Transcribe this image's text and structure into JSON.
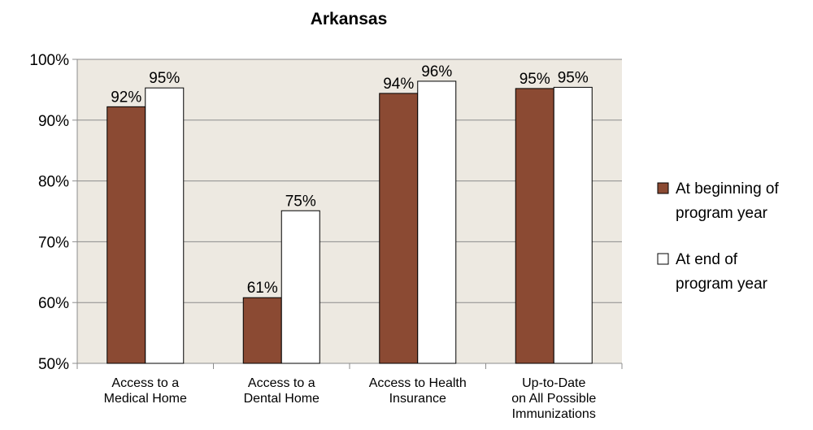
{
  "chart_data": {
    "type": "bar",
    "title": "Arkansas",
    "xlabel": "",
    "ylabel": "",
    "ylim": [
      50,
      100
    ],
    "y_ticks": [
      "50%",
      "60%",
      "70%",
      "80%",
      "90%",
      "100%"
    ],
    "y_tick_values": [
      50,
      60,
      70,
      80,
      90,
      100
    ],
    "categories": [
      [
        "Access to a",
        "Medical Home"
      ],
      [
        "Access to a",
        "Dental Home"
      ],
      [
        "Access to Health",
        "Insurance"
      ],
      [
        "Up-to-Date",
        "on All Possible",
        "Immunizations"
      ]
    ],
    "series": [
      {
        "name": "At beginning of program year",
        "legend_lines": [
          "At beginning of",
          "program year"
        ],
        "values": [
          92.2,
          60.8,
          94.4,
          95.2
        ],
        "labels": [
          "92%",
          "61%",
          "94%",
          "95%"
        ],
        "color": "#8B4A33"
      },
      {
        "name": "At end of program year",
        "legend_lines": [
          "At end of",
          "program year"
        ],
        "values": [
          95.3,
          75.1,
          96.4,
          95.4
        ],
        "labels": [
          "95%",
          "75%",
          "96%",
          "95%"
        ],
        "color": "#FFFFFF"
      }
    ],
    "plot_background": "#EDE9E1",
    "gridlines": true,
    "legend_position": "right"
  }
}
